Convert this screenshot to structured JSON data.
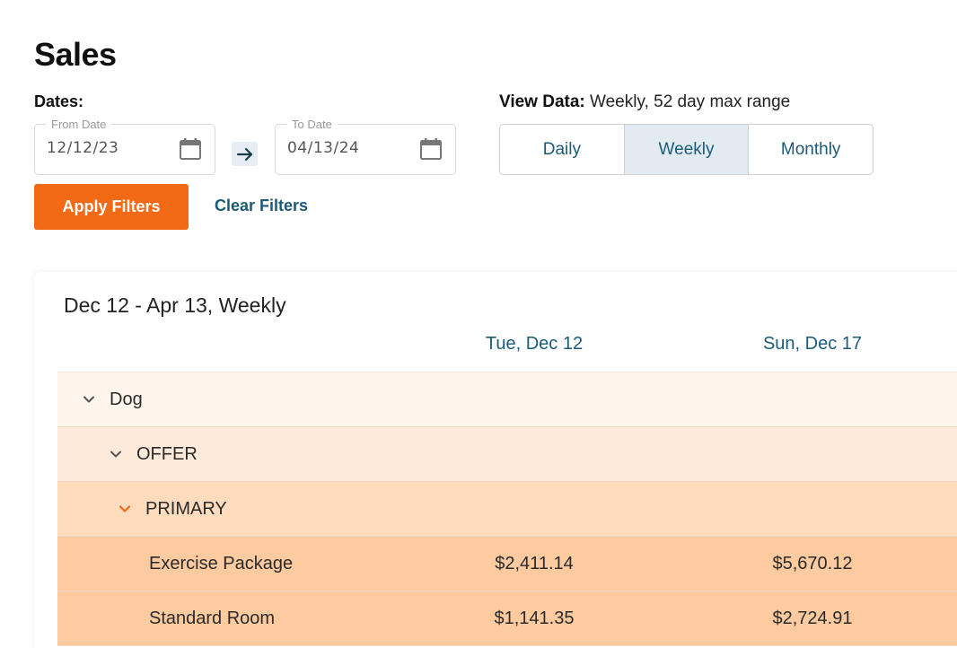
{
  "page": {
    "title": "Sales"
  },
  "filters": {
    "dates_label": "Dates:",
    "from": {
      "legend": "From Date",
      "value": "12/12/23"
    },
    "to": {
      "legend": "To Date",
      "value": "04/13/24"
    },
    "view_label": "View Data:",
    "view_desc": " Weekly, 52 day max range",
    "view_options": [
      "Daily",
      "Weekly",
      "Monthly"
    ],
    "active_view": "Weekly",
    "apply_label": "Apply Filters",
    "clear_label": "Clear Filters"
  },
  "report": {
    "range_title": "Dec 12 - Apr 13, Weekly",
    "columns": [
      "Tue, Dec 12",
      "Sun, Dec 17"
    ],
    "rows": [
      {
        "label": "Dog",
        "values": [
          "",
          ""
        ]
      },
      {
        "label": "OFFER",
        "values": [
          "",
          ""
        ]
      },
      {
        "label": "PRIMARY",
        "values": [
          "",
          ""
        ]
      },
      {
        "label": "Exercise Package",
        "values": [
          "$2,411.14",
          "$5,670.12"
        ]
      },
      {
        "label": "Standard Room",
        "values": [
          "$1,141.35",
          "$2,724.91"
        ]
      }
    ]
  },
  "colors": {
    "accent": "#f26a16",
    "link": "#1b5a78",
    "row_dog": "#fff5ec",
    "row_offer": "#feeadb",
    "row_primary": "#fedcbd",
    "row_item": "#fdcb9f"
  },
  "icons": {
    "calendar": "calendar-icon",
    "arrow": "arrow-right-icon",
    "chevron": "chevron-down-icon"
  }
}
